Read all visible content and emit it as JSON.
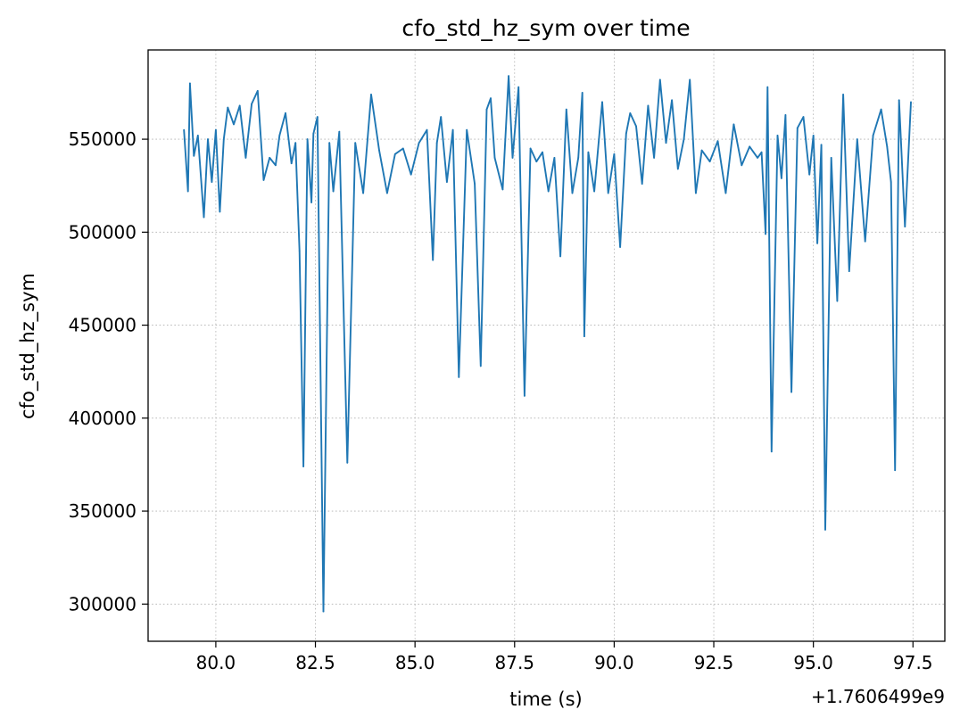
{
  "chart_data": {
    "type": "line",
    "title": "cfo_std_hz_sym over time",
    "xlabel": "time (s)",
    "ylabel": "cfo_std_hz_sym",
    "x_offset_label": "+1.7606499e9",
    "xlim": [
      78.3,
      98.3
    ],
    "ylim": [
      280000,
      598000
    ],
    "grid": true,
    "x_ticks": [
      80.0,
      82.5,
      85.0,
      87.5,
      90.0,
      92.5,
      95.0,
      97.5
    ],
    "x_tick_labels": [
      "80.0",
      "82.5",
      "85.0",
      "87.5",
      "90.0",
      "92.5",
      "95.0",
      "97.5"
    ],
    "y_ticks": [
      300000,
      350000,
      400000,
      450000,
      500000,
      550000
    ],
    "y_tick_labels": [
      "300000",
      "350000",
      "400000",
      "450000",
      "500000",
      "550000"
    ],
    "series": [
      {
        "name": "cfo_std_hz_sym",
        "color": "#1f77b4",
        "x": [
          79.2,
          79.3,
          79.35,
          79.45,
          79.55,
          79.7,
          79.8,
          79.9,
          80.0,
          80.1,
          80.2,
          80.3,
          80.45,
          80.6,
          80.75,
          80.9,
          81.05,
          81.2,
          81.35,
          81.5,
          81.6,
          81.75,
          81.9,
          82.0,
          82.1,
          82.2,
          82.3,
          82.4,
          82.45,
          82.55,
          82.7,
          82.85,
          82.95,
          83.1,
          83.3,
          83.5,
          83.7,
          83.9,
          84.1,
          84.3,
          84.5,
          84.7,
          84.9,
          85.1,
          85.3,
          85.45,
          85.55,
          85.65,
          85.8,
          85.95,
          86.1,
          86.3,
          86.5,
          86.65,
          86.8,
          86.9,
          87.0,
          87.2,
          87.35,
          87.45,
          87.6,
          87.75,
          87.9,
          88.05,
          88.2,
          88.35,
          88.5,
          88.65,
          88.8,
          88.95,
          89.1,
          89.2,
          89.25,
          89.35,
          89.5,
          89.7,
          89.85,
          90.0,
          90.15,
          90.3,
          90.4,
          90.55,
          90.7,
          90.85,
          91.0,
          91.15,
          91.3,
          91.45,
          91.6,
          91.75,
          91.9,
          92.05,
          92.2,
          92.4,
          92.6,
          92.8,
          93.0,
          93.2,
          93.4,
          93.6,
          93.7,
          93.8,
          93.85,
          93.95,
          94.1,
          94.2,
          94.3,
          94.45,
          94.6,
          94.75,
          94.9,
          95.0,
          95.1,
          95.2,
          95.3,
          95.45,
          95.6,
          95.75,
          95.9,
          96.1,
          96.3,
          96.5,
          96.7,
          96.85,
          96.95,
          97.05,
          97.15,
          97.3,
          97.45
        ],
        "values": [
          555000,
          522000,
          580000,
          541000,
          552000,
          508000,
          550000,
          527000,
          555000,
          511000,
          550000,
          567000,
          558000,
          568000,
          540000,
          569000,
          576000,
          528000,
          540000,
          536000,
          552000,
          564000,
          537000,
          548000,
          490000,
          374000,
          550000,
          516000,
          553000,
          562000,
          296000,
          548000,
          522000,
          554000,
          376000,
          548000,
          521000,
          574000,
          544000,
          521000,
          542000,
          545000,
          531000,
          548000,
          555000,
          485000,
          548000,
          562000,
          527000,
          555000,
          422000,
          555000,
          526000,
          428000,
          566000,
          572000,
          540000,
          523000,
          584000,
          540000,
          578000,
          412000,
          545000,
          538000,
          543000,
          522000,
          540000,
          487000,
          566000,
          521000,
          540000,
          575000,
          444000,
          543000,
          522000,
          570000,
          521000,
          542000,
          492000,
          553000,
          564000,
          557000,
          526000,
          568000,
          540000,
          582000,
          548000,
          571000,
          534000,
          550000,
          582000,
          521000,
          544000,
          538000,
          549000,
          521000,
          558000,
          536000,
          546000,
          540000,
          543000,
          499000,
          578000,
          382000,
          552000,
          529000,
          563000,
          414000,
          556000,
          562000,
          531000,
          552000,
          494000,
          547000,
          340000,
          540000,
          463000,
          574000,
          479000,
          550000,
          495000,
          552000,
          566000,
          546000,
          527000,
          372000,
          571000,
          503000,
          570000
        ]
      }
    ]
  }
}
